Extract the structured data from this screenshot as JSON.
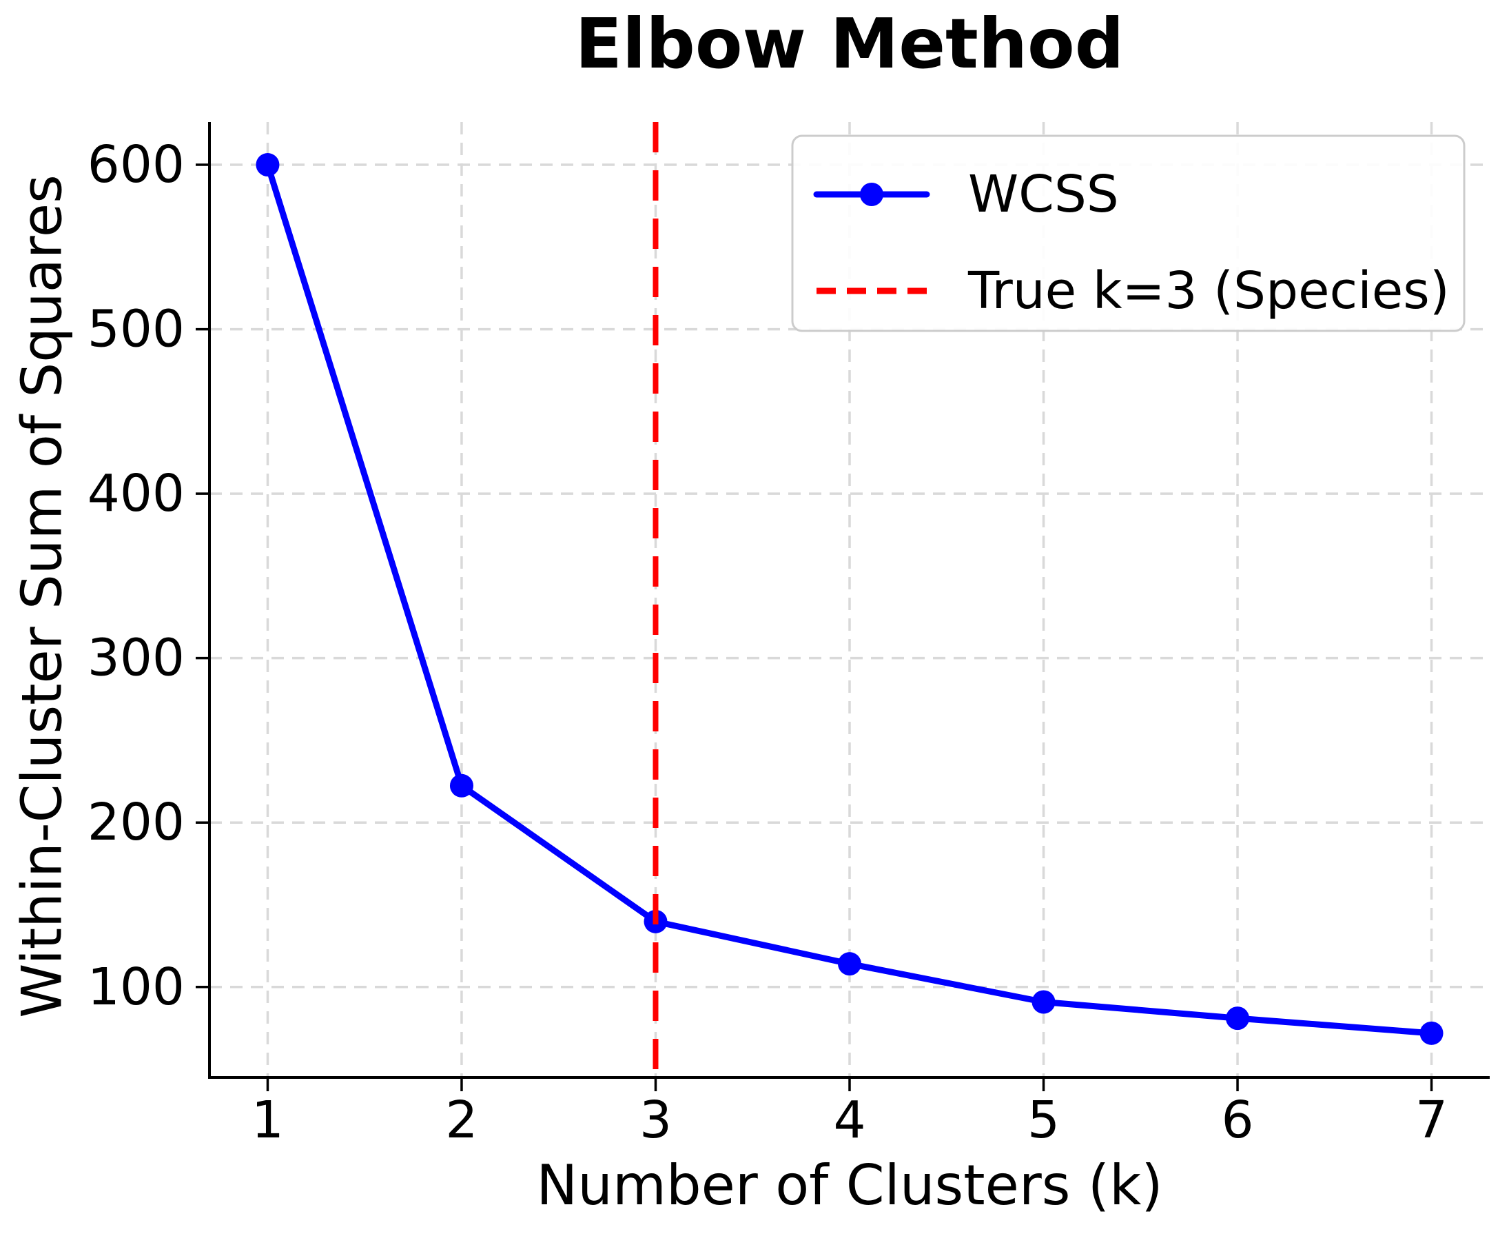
{
  "page": {
    "background": "#ffffff"
  },
  "chart_data": {
    "type": "line",
    "title": "Elbow Method",
    "xlabel": "Number of Clusters (k)",
    "ylabel": "Within-Cluster Sum of Squares",
    "x": [
      1,
      2,
      3,
      4,
      5,
      6,
      7
    ],
    "series": [
      {
        "name": "WCSS",
        "values": [
          600,
          222.4,
          139.8,
          114.1,
          90.9,
          81.0,
          71.9
        ],
        "color": "#0000ff",
        "marker": "circle",
        "line_width": 9,
        "marker_radius": 17
      }
    ],
    "vline": {
      "x": 3,
      "label": "True k=3 (Species)",
      "color": "#ff0000",
      "style": "dashed",
      "line_width": 8
    },
    "xticks": [
      1,
      2,
      3,
      4,
      5,
      6,
      7
    ],
    "yticks": [
      100,
      200,
      300,
      400,
      500,
      600
    ],
    "xlim": [
      0.7,
      7.3
    ],
    "ylim": [
      45,
      626
    ],
    "grid": true,
    "grid_color": "#d9d9d9",
    "axis_color": "#000000",
    "background_color": "#ffffff",
    "legend": {
      "position": "upper right",
      "border_color": "#cccccc",
      "entries": [
        {
          "label": "WCSS",
          "color": "#0000ff",
          "style": "solid-marker"
        },
        {
          "label": "True k=3 (Species)",
          "color": "#ff0000",
          "style": "dashed"
        }
      ]
    }
  }
}
